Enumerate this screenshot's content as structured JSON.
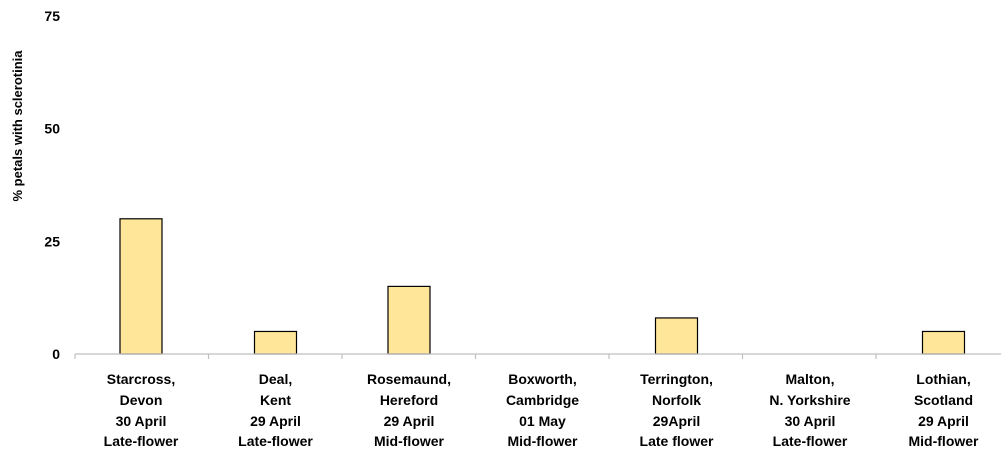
{
  "chart_data": {
    "type": "bar",
    "ylabel": "% petals with sclerotinia",
    "ylim": [
      0,
      75
    ],
    "yticks": [
      0,
      25,
      50,
      75
    ],
    "grid": false,
    "legend": "none",
    "categories": [
      [
        "Starcross,",
        "Devon",
        "30 April",
        "Late-flower"
      ],
      [
        "Deal,",
        "Kent",
        "29 April",
        "Late-flower"
      ],
      [
        "Rosemaund,",
        "Hereford",
        "29 April",
        "Mid-flower"
      ],
      [
        "Boxworth,",
        "Cambridge",
        "01 May",
        "Mid-flower"
      ],
      [
        "Terrington,",
        "Norfolk",
        "29April",
        "Late flower"
      ],
      [
        "Malton,",
        "N. Yorkshire",
        "30 April",
        "Late-flower"
      ],
      [
        "Lothian,",
        "Scotland",
        "29 April",
        "Mid-flower"
      ]
    ],
    "values": [
      30,
      5,
      15,
      0,
      8,
      0,
      5
    ],
    "bar_color": "#FFE699",
    "bar_edge_color": "#000000",
    "axis_color": "#BFBFBF"
  }
}
